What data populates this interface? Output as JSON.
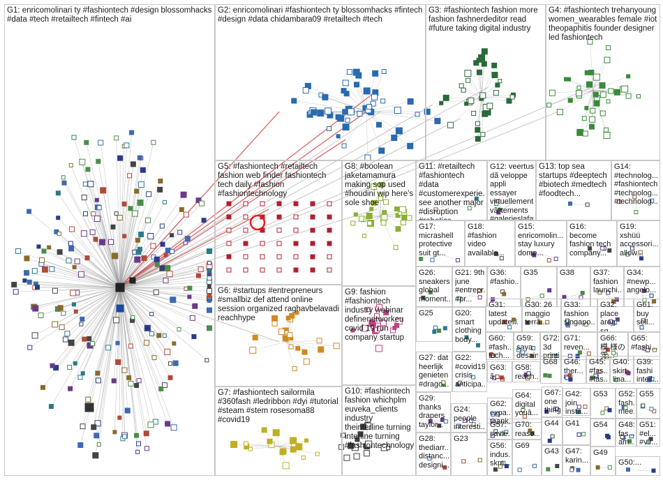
{
  "title": "",
  "colors": {
    "edge_gray": "#9a9a9a",
    "edge_red": "#d03030",
    "box_border": "#c8c8c8",
    "node_fill": "#ffffff",
    "node_stroke": "#3a4a9a"
  },
  "groups": [
    {
      "id": "G1",
      "label": "G1: enricomolinari ty #fashiontech #design blossomhacks #data #tech #retailtech #fintech #ai"
    },
    {
      "id": "G2",
      "label": "G2: enricomolinari #fashiontech ty blossomhacks #fintech #design #data chidambara09 #retailtech #tech"
    },
    {
      "id": "G3",
      "label": "G3: #fashiontech fashion more fashion fashnerdeditor read #future taking digital industry"
    },
    {
      "id": "G4",
      "label": "G4: #fashiontech trehanyoung women_wearables female #iot theopaphitis founder designer led fashiontech"
    },
    {
      "id": "G5",
      "label": "G5: #fashiontech #retailtech fashion web finder fashiontech tech daily #fashion #fashiontechnology"
    },
    {
      "id": "G8",
      "label": "G8: #boolean jaketamamura making sop used #houdini wip here's sole shoe"
    },
    {
      "id": "G11",
      "label": "G11: #retailtech #fashiontech #data #customerexperie... see another major #disruption #robotics..."
    },
    {
      "id": "G12",
      "label": "G12: veertus dã veloppe appli essayer virtuellement vãªtements #galerieslafayette"
    },
    {
      "id": "G13",
      "label": "G13: top sea startups #deeptech #biotech #medtech #foodtech..."
    },
    {
      "id": "G14",
      "label": "G14: #technolog... #fashiontech #technolog... #technolog..."
    },
    {
      "id": "G17",
      "label": "G17: micrashell protective suit gt..."
    },
    {
      "id": "G18",
      "label": "G18: #fashion video available..."
    },
    {
      "id": "G15",
      "label": "G15: enricomolin... stay luxury dome..."
    },
    {
      "id": "G16",
      "label": "G16: become fashion tech company..."
    },
    {
      "id": "G19",
      "label": "G19: xshüü accessori... allow..."
    },
    {
      "id": "G26",
      "label": "G26: sneakers global moment..."
    },
    {
      "id": "G21",
      "label": "G21: 9th june #entrepr... #pr..."
    },
    {
      "id": "G36",
      "label": "G36: #fashio..."
    },
    {
      "id": "G35",
      "label": "G35"
    },
    {
      "id": "G38",
      "label": "G38"
    },
    {
      "id": "G37",
      "label": "G37: fashion launchi..."
    },
    {
      "id": "G34",
      "label": "G34: #newp... angelo..."
    },
    {
      "id": "G6",
      "label": "G6: #startups #entrepreneurs #smallbiz def attend online session organized raghavbelavadi reachhype"
    },
    {
      "id": "G9",
      "label": "G9: fashion #fashiontech industry webinar definenetworkeu covid 19 run company startup"
    },
    {
      "id": "G25",
      "label": "G25"
    },
    {
      "id": "G20",
      "label": "G20: smart clothing body..."
    },
    {
      "id": "G31",
      "label": "G31: latest update..."
    },
    {
      "id": "G30",
      "label": "G30: 26 maggio terrã..."
    },
    {
      "id": "G33",
      "label": "G33: fashion singapo..."
    },
    {
      "id": "G32",
      "label": "G32: place area sq..."
    },
    {
      "id": "G61",
      "label": "G61: buy sell..."
    },
    {
      "id": "G60",
      "label": "G60: #fash... tech..."
    },
    {
      "id": "G59",
      "label": "G59: saya desain reach..."
    },
    {
      "id": "G72",
      "label": "G72: 3d printin..."
    },
    {
      "id": "G71",
      "label": "G71: reven..."
    },
    {
      "id": "G66",
      "label": "G66: 模 様の雰..."
    },
    {
      "id": "G65",
      "label": "G65: #fashi..."
    },
    {
      "id": "G27",
      "label": "G27: dat heerlijk genieten #drago..."
    },
    {
      "id": "G22",
      "label": "G22: #covid19 crisis anticipa..."
    },
    {
      "id": "G63",
      "label": "G63: ã¡..."
    },
    {
      "id": "G58",
      "label": "G58: reach..."
    },
    {
      "id": "G68",
      "label": "G68"
    },
    {
      "id": "G46",
      "label": "G46: ther..."
    },
    {
      "id": "G45",
      "label": "G45: #fas... #fas..."
    },
    {
      "id": "G40",
      "label": "G40: skirt lina..."
    },
    {
      "id": "G39",
      "label": "G39: fashi intell..."
    },
    {
      "id": "G7",
      "label": "G7: #fashiontech sailormila #360fash #ledribbon #dyi #tutorial #steam #stem rosesoma88 #covid19"
    },
    {
      "id": "G10",
      "label": "G10: #fashiontech fashion whichplm euveka_clients industry theinterline turning interline turning #fashiontechnology"
    },
    {
      "id": "G29",
      "label": "G29: thanks drapers taylor..."
    },
    {
      "id": "G24",
      "label": "G24: people interesti... read..."
    },
    {
      "id": "G62",
      "label": "G62: expa... thank..."
    },
    {
      "id": "G64",
      "label": "G64: digital youâ..."
    },
    {
      "id": "G67",
      "label": "G67: one thing..."
    },
    {
      "id": "G42",
      "label": "G42: join insta..."
    },
    {
      "id": "G53",
      "label": "G53"
    },
    {
      "id": "G52",
      "label": "G52: fash... mee..."
    },
    {
      "id": "G55",
      "label": "G55"
    },
    {
      "id": "G57",
      "label": "G57: savie..."
    },
    {
      "id": "G70",
      "label": "G70: reaso..."
    },
    {
      "id": "G44",
      "label": "G44"
    },
    {
      "id": "G41",
      "label": "G41"
    },
    {
      "id": "G54",
      "label": "G54"
    },
    {
      "id": "G48",
      "label": "G48: fas... am..."
    },
    {
      "id": "G51",
      "label": "G51: #el... #vir..."
    },
    {
      "id": "G28",
      "label": "G28: thediarr... distanc... designi..."
    },
    {
      "id": "G23",
      "label": "G23"
    },
    {
      "id": "G56",
      "label": "G56: indus... skm..."
    },
    {
      "id": "G69",
      "label": "G69"
    },
    {
      "id": "G43",
      "label": "G43"
    },
    {
      "id": "G47",
      "label": "G47: karin..."
    },
    {
      "id": "G49",
      "label": "G49"
    },
    {
      "id": "G50",
      "label": "G50:..."
    }
  ]
}
